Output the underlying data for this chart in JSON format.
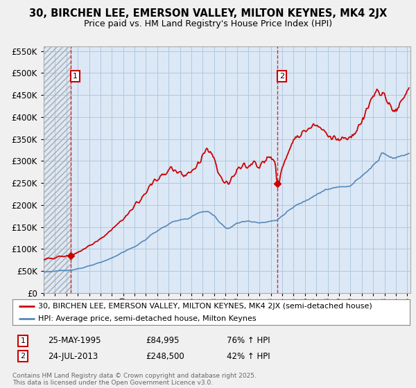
{
  "title": "30, BIRCHEN LEE, EMERSON VALLEY, MILTON KEYNES, MK4 2JX",
  "subtitle": "Price paid vs. HM Land Registry's House Price Index (HPI)",
  "legend_line1": "30, BIRCHEN LEE, EMERSON VALLEY, MILTON KEYNES, MK4 2JX (semi-detached house)",
  "legend_line2": "HPI: Average price, semi-detached house, Milton Keynes",
  "footer": "Contains HM Land Registry data © Crown copyright and database right 2025.\nThis data is licensed under the Open Government Licence v3.0.",
  "sale1_label": "1",
  "sale1_date": "25-MAY-1995",
  "sale1_price": "£84,995",
  "sale1_hpi": "76% ↑ HPI",
  "sale2_label": "2",
  "sale2_date": "24-JUL-2013",
  "sale2_price": "£248,500",
  "sale2_hpi": "42% ↑ HPI",
  "price_line_color": "#cc0000",
  "hpi_line_color": "#5588bb",
  "plot_bg_color": "#dce8f5",
  "background_color": "#f0f0f0",
  "grid_color": "#b0c8e0",
  "ylim": [
    0,
    560000
  ],
  "yticks": [
    0,
    50000,
    100000,
    150000,
    200000,
    250000,
    300000,
    350000,
    400000,
    450000,
    500000,
    550000
  ],
  "sale1_x": 1995.38,
  "sale1_y": 84995,
  "sale2_x": 2013.55,
  "sale2_y": 248500,
  "dashed_x1": 1995.38,
  "dashed_x2": 2013.55,
  "xmin": 1993.0,
  "xmax": 2025.3
}
